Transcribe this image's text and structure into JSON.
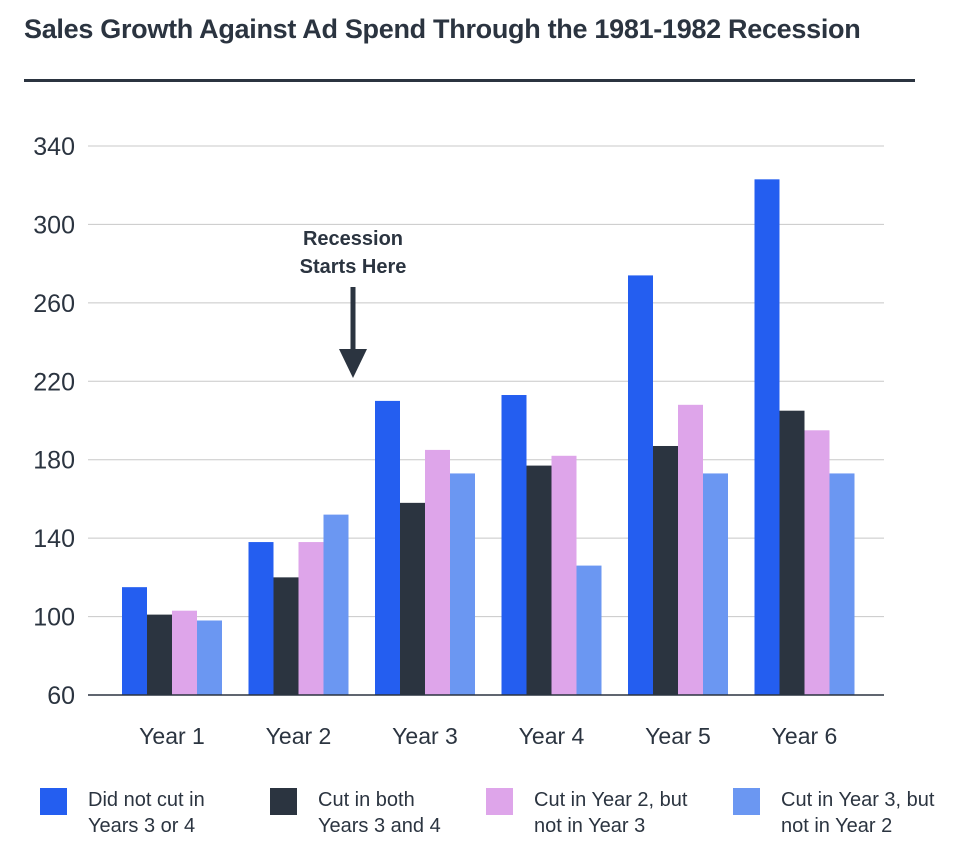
{
  "chart_data": {
    "type": "bar",
    "title": "Sales Growth Against Ad Spend Through the 1981-1982 Recession",
    "xlabel": "",
    "ylabel": "",
    "ylim": [
      60,
      340
    ],
    "yticks": [
      60,
      100,
      140,
      180,
      220,
      260,
      300,
      340
    ],
    "grid": true,
    "legend_position": "bottom",
    "categories": [
      "Year 1",
      "Year 2",
      "Year 3",
      "Year 4",
      "Year 5",
      "Year 6"
    ],
    "series": [
      {
        "name": "Did not cut in Years 3 or 4",
        "color": "#245ef0",
        "values": [
          115,
          138,
          210,
          213,
          274,
          323
        ]
      },
      {
        "name": "Cut in both Years 3 and 4",
        "color": "#2b3440",
        "values": [
          101,
          120,
          158,
          177,
          187,
          205
        ]
      },
      {
        "name": "Cut in Year 2, but not in Year 3",
        "color": "#dea5ea",
        "values": [
          103,
          138,
          185,
          182,
          208,
          195
        ]
      },
      {
        "name": "Cut in Year 3, but not in Year 2",
        "color": "#6b97f2",
        "values": [
          98,
          152,
          173,
          126,
          173,
          173
        ]
      }
    ],
    "legend_labels": [
      "Did not cut in\nYears 3 or 4",
      "Cut in both\nYears 3 and 4",
      "Cut in Year 2, but\nnot in Year 3",
      "Cut in Year 3, but\nnot in Year 2"
    ],
    "annotation": {
      "lines": [
        "Recession",
        "Starts Here"
      ],
      "category": "Year 3"
    }
  }
}
